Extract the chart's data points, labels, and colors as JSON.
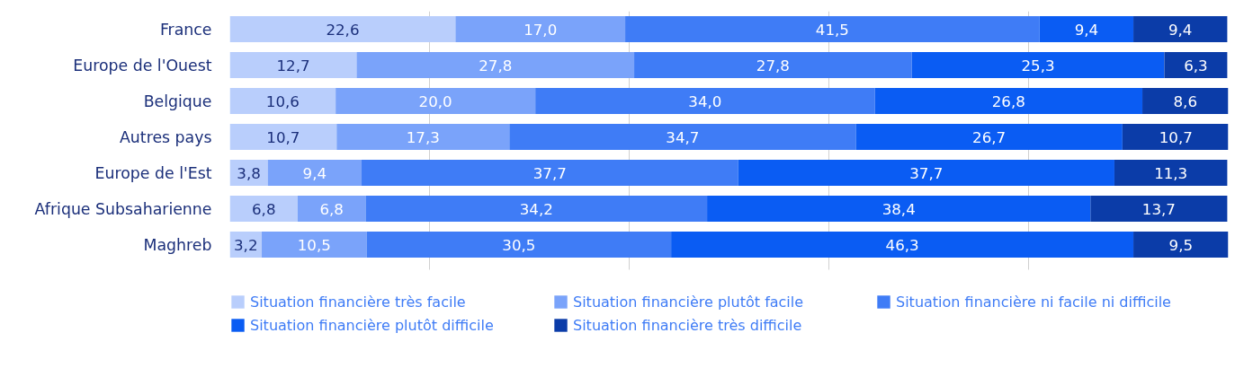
{
  "chart_data": {
    "type": "bar",
    "orientation": "horizontal",
    "stacked": true,
    "categories": [
      "France",
      "Europe de l'Ouest",
      "Belgique",
      "Autres pays",
      "Europe de l'Est",
      "Afrique Subsaharienne",
      "Maghreb"
    ],
    "xlim": [
      0,
      100
    ],
    "xticks": [
      {
        "value": 20,
        "label": null
      },
      {
        "value": 40,
        "label": null
      },
      {
        "value": 60,
        "label": null
      },
      {
        "value": 80,
        "label": null
      }
    ],
    "grid": "x",
    "tick_labels": "y",
    "legend": "bottom",
    "series": [
      {
        "name": "Situation financière très facile",
        "color": "#b9cefc",
        "values": [
          22.6,
          12.7,
          10.6,
          10.7,
          3.8,
          6.8,
          3.2
        ],
        "value_labels": [
          "22,6",
          "12,7",
          "10,6",
          "10,7",
          "3,8",
          "6,8",
          "3,2"
        ]
      },
      {
        "name": "Situation financière plutôt facile",
        "color": "#7aa3fa",
        "values": [
          17.0,
          27.8,
          20.0,
          17.3,
          9.4,
          6.8,
          10.5
        ],
        "value_labels": [
          "17,0",
          "27,8",
          "20,0",
          "17,3",
          "9,4",
          "6,8",
          "10,5"
        ]
      },
      {
        "name": "Situation financière ni facile ni difficile",
        "color": "#3f7cf6",
        "values": [
          41.5,
          27.8,
          34.0,
          34.7,
          37.7,
          34.2,
          30.5
        ],
        "value_labels": [
          "41,5",
          "27,8",
          "34,0",
          "34,7",
          "37,7",
          "34,2",
          "30,5"
        ]
      },
      {
        "name": "Situation financière plutôt difficile",
        "color": "#0a5cf3",
        "values": [
          9.4,
          25.3,
          26.8,
          26.7,
          37.7,
          38.4,
          46.3
        ],
        "value_labels": [
          "9,4",
          "25,3",
          "26,8",
          "26,7",
          "37,7",
          "38,4",
          "46,3"
        ]
      },
      {
        "name": "Situation financière très difficile",
        "color": "#0b3ca8",
        "values": [
          9.4,
          6.3,
          8.6,
          10.7,
          11.3,
          13.7,
          9.5
        ],
        "value_labels": [
          "9,4",
          "6,3",
          "8,6",
          "10,7",
          "11,3",
          "13,7",
          "9,5"
        ]
      }
    ]
  }
}
